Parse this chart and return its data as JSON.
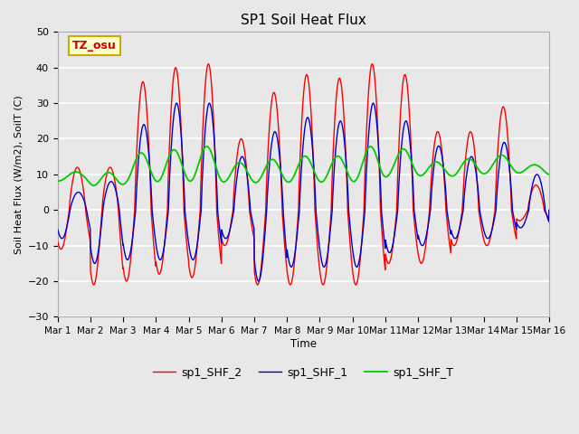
{
  "title": "SP1 Soil Heat Flux",
  "ylabel": "Soil Heat Flux (W/m2), SoilT (C)",
  "xlabel": "Time",
  "ylim": [
    -30,
    50
  ],
  "xlim": [
    0,
    15
  ],
  "background_color": "#e8e8e8",
  "plot_bg_color": "#e8e8e8",
  "grid_color": "#ffffff",
  "tz_label": "TZ_osu",
  "tz_box_facecolor": "#ffffcc",
  "tz_box_edgecolor": "#ccaa00",
  "tz_text_color": "#cc0000",
  "line_colors": {
    "shf2": "#ff0000",
    "shf1": "#0000cc",
    "shft": "#00cc00"
  },
  "legend_labels": [
    "sp1_SHF_2",
    "sp1_SHF_1",
    "sp1_SHF_T"
  ],
  "x_tick_labels": [
    "Mar 1",
    "Mar 2",
    "Mar 3",
    "Mar 4",
    "Mar 5",
    "Mar 6",
    "Mar 7",
    "Mar 8",
    "Mar 9",
    "Mar 10",
    "Mar 11",
    "Mar 12",
    "Mar 13",
    "Mar 14",
    "Mar 15",
    "Mar 16"
  ],
  "x_tick_positions": [
    0,
    1,
    2,
    3,
    4,
    5,
    6,
    7,
    8,
    9,
    10,
    11,
    12,
    13,
    14,
    15
  ],
  "yticks": [
    -30,
    -20,
    -10,
    0,
    10,
    20,
    30,
    40,
    50
  ]
}
